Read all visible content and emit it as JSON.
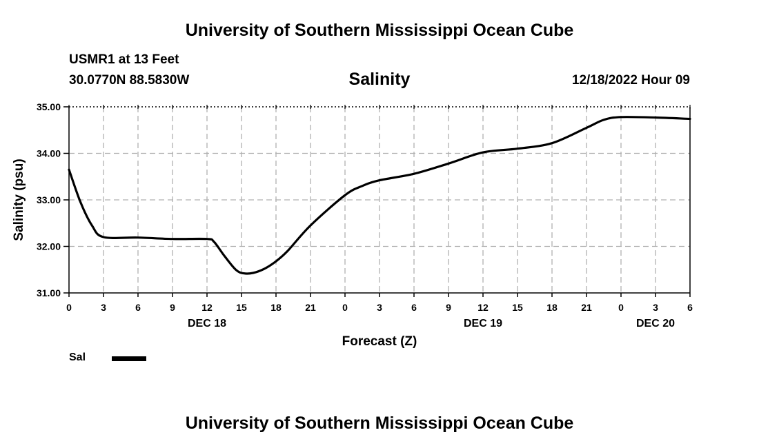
{
  "header": {
    "title": "University of Southern Mississippi Ocean Cube",
    "station": "USMR1 at 13 Feet",
    "coords": "30.0770N  88.5830W",
    "datetime": "12/18/2022 Hour 09"
  },
  "footer": {
    "title": "University of Southern Mississippi Ocean Cube"
  },
  "legend": {
    "label": "Sal"
  },
  "chart_data": {
    "type": "line",
    "title": "Salinity",
    "xlabel": "Forecast (Z)",
    "ylabel": "Salinity (psu)",
    "xlim": [
      0,
      54
    ],
    "ylim": [
      31.0,
      35.0
    ],
    "grid": true,
    "x_ticks": [
      0,
      3,
      6,
      9,
      12,
      15,
      18,
      21,
      24,
      27,
      30,
      33,
      36,
      39,
      42,
      45,
      48,
      51,
      54
    ],
    "x_tick_labels": [
      "0",
      "3",
      "6",
      "9",
      "12",
      "15",
      "18",
      "21",
      "0",
      "3",
      "6",
      "9",
      "12",
      "15",
      "18",
      "21",
      "0",
      "3",
      "6"
    ],
    "y_ticks": [
      31.0,
      32.0,
      33.0,
      34.0,
      35.0
    ],
    "y_tick_labels": [
      "31.00",
      "32.00",
      "33.00",
      "34.00",
      "35.00"
    ],
    "date_labels": [
      {
        "x": 12,
        "label": "DEC 18"
      },
      {
        "x": 36,
        "label": "DEC 19"
      },
      {
        "x": 51,
        "label": "DEC 20"
      }
    ],
    "series": [
      {
        "name": "Sal",
        "color": "#000000",
        "x": [
          0,
          1,
          2,
          3,
          6,
          9,
          12,
          12.6,
          13.5,
          14.5,
          15.2,
          16,
          17,
          18,
          19,
          21,
          24,
          25.5,
          27,
          30,
          33,
          36,
          39,
          42,
          45,
          46.5,
          48,
          51,
          54
        ],
        "y": [
          33.65,
          32.95,
          32.45,
          32.2,
          32.19,
          32.16,
          32.16,
          32.1,
          31.8,
          31.5,
          31.42,
          31.43,
          31.52,
          31.68,
          31.9,
          32.45,
          33.1,
          33.3,
          33.42,
          33.56,
          33.78,
          34.02,
          34.1,
          34.22,
          34.55,
          34.72,
          34.78,
          34.77,
          34.74
        ]
      }
    ]
  }
}
